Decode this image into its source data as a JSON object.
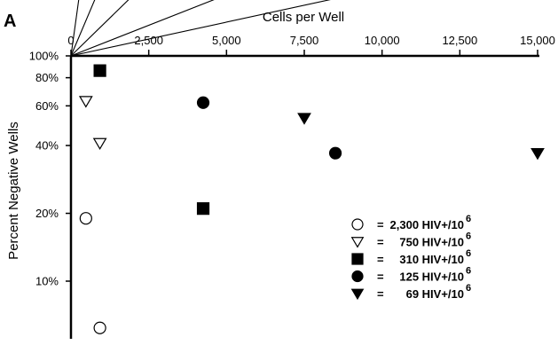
{
  "panel_label": "A",
  "chart_data": {
    "type": "scatter",
    "xlabel": "Cells per Well",
    "ylabel": "Percent Negative Wells",
    "x_axis_position": "top",
    "y_scale": "log",
    "xlim": [
      0,
      15000
    ],
    "ylim": [
      0.055,
      1.0
    ],
    "x_ticks": [
      0,
      2500,
      5000,
      7500,
      10000,
      12500,
      15000
    ],
    "x_tick_labels": [
      "0",
      "2,500",
      "5,000",
      "7,500",
      "10,000",
      "12,500",
      "15,000"
    ],
    "y_ticks": [
      1.0,
      0.8,
      0.6,
      0.4,
      0.2,
      0.1
    ],
    "y_tick_labels": [
      "100%",
      "80%",
      "60%",
      "40%",
      "20%",
      "10%"
    ],
    "legend_position": "bottom-right",
    "series": [
      {
        "name": "2,300 HIV+/10^6",
        "legend_eq": "=",
        "legend_text": "2,300 HIV+/10",
        "legend_sup": "6",
        "marker": "circle-open",
        "points": [
          [
            480,
            0.19
          ],
          [
            930,
            0.062
          ]
        ],
        "fit_slope_per_cell": -0.0023
      },
      {
        "name": "750 HIV+/10^6",
        "legend_eq": "=",
        "legend_text": "750 HIV+/10",
        "legend_sup": "6",
        "marker": "triangle-down-open",
        "points": [
          [
            480,
            0.63
          ],
          [
            930,
            0.41
          ]
        ],
        "fit_slope_per_cell": -0.00075
      },
      {
        "name": "310 HIV+/10^6",
        "legend_eq": "=",
        "legend_text": "310 HIV+/10",
        "legend_sup": "6",
        "marker": "square-filled",
        "points": [
          [
            930,
            0.86
          ],
          [
            4250,
            0.21
          ]
        ],
        "fit_slope_per_cell": -0.00031
      },
      {
        "name": "125 HIV+/10^6",
        "legend_eq": "=",
        "legend_text": "125 HIV+/10",
        "legend_sup": "6",
        "marker": "circle-filled",
        "points": [
          [
            4250,
            0.62
          ],
          [
            8500,
            0.37
          ]
        ],
        "fit_slope_per_cell": -0.000125
      },
      {
        "name": "69 HIV+/10^6",
        "legend_eq": "=",
        "legend_text": "69 HIV+/10",
        "legend_sup": "6",
        "marker": "triangle-down-filled",
        "points": [
          [
            7500,
            0.53
          ],
          [
            15000,
            0.37
          ]
        ],
        "fit_slope_per_cell": -6.9e-05
      }
    ]
  }
}
